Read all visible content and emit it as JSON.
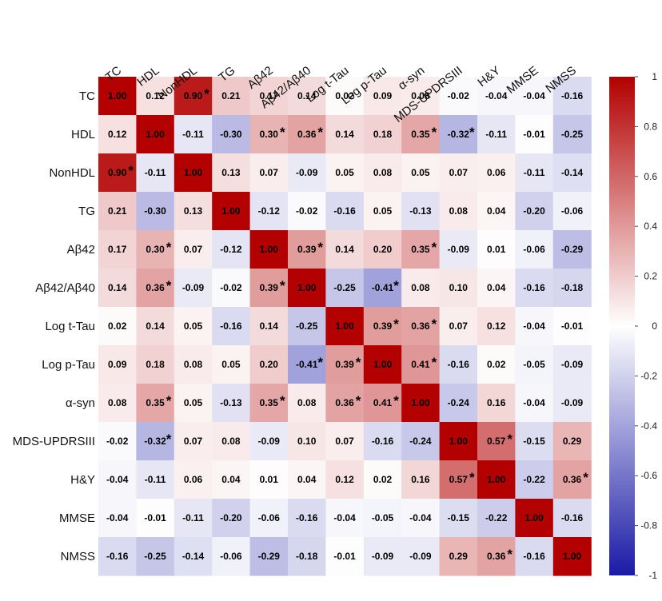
{
  "chart_data": {
    "type": "heatmap",
    "title": "",
    "variables": [
      "TC",
      "HDL",
      "NonHDL",
      "TG",
      "Aβ42",
      "Aβ42/Aβ40",
      "Log t-Tau",
      "Log p-Tau",
      "α-syn",
      "MDS-UPDRSIII",
      "H&Y",
      "MMSE",
      "NMSS"
    ],
    "values": [
      [
        1.0,
        0.12,
        0.9,
        0.21,
        0.17,
        0.14,
        0.02,
        0.09,
        0.08,
        -0.02,
        -0.04,
        -0.04,
        -0.16
      ],
      [
        0.12,
        1.0,
        -0.11,
        -0.3,
        0.3,
        0.36,
        0.14,
        0.18,
        0.35,
        -0.32,
        -0.11,
        -0.01,
        -0.25
      ],
      [
        0.9,
        -0.11,
        1.0,
        0.13,
        0.07,
        -0.09,
        0.05,
        0.08,
        0.05,
        0.07,
        0.06,
        -0.11,
        -0.14
      ],
      [
        0.21,
        -0.3,
        0.13,
        1.0,
        -0.12,
        -0.02,
        -0.16,
        0.05,
        -0.13,
        0.08,
        0.04,
        -0.2,
        -0.06
      ],
      [
        0.17,
        0.3,
        0.07,
        -0.12,
        1.0,
        0.39,
        0.14,
        0.2,
        0.35,
        -0.09,
        0.01,
        -0.06,
        -0.29
      ],
      [
        0.14,
        0.36,
        -0.09,
        -0.02,
        0.39,
        1.0,
        -0.25,
        -0.41,
        0.08,
        0.1,
        0.04,
        -0.16,
        -0.18
      ],
      [
        0.02,
        0.14,
        0.05,
        -0.16,
        0.14,
        -0.25,
        1.0,
        0.39,
        0.36,
        0.07,
        0.12,
        -0.04,
        -0.01
      ],
      [
        0.09,
        0.18,
        0.08,
        0.05,
        0.2,
        -0.41,
        0.39,
        1.0,
        0.41,
        -0.16,
        0.02,
        -0.05,
        -0.09
      ],
      [
        0.08,
        0.35,
        0.05,
        -0.13,
        0.35,
        0.08,
        0.36,
        0.41,
        1.0,
        -0.24,
        0.16,
        -0.04,
        -0.09
      ],
      [
        -0.02,
        -0.32,
        0.07,
        0.08,
        -0.09,
        0.1,
        0.07,
        -0.16,
        -0.24,
        1.0,
        0.57,
        -0.15,
        0.29
      ],
      [
        -0.04,
        -0.11,
        0.06,
        0.04,
        0.01,
        0.04,
        0.12,
        0.02,
        0.16,
        0.57,
        1.0,
        -0.22,
        0.36
      ],
      [
        -0.04,
        -0.01,
        -0.11,
        -0.2,
        -0.06,
        -0.16,
        -0.04,
        -0.05,
        -0.04,
        -0.15,
        -0.22,
        1.0,
        -0.16
      ],
      [
        -0.16,
        -0.25,
        -0.14,
        -0.06,
        -0.29,
        -0.18,
        -0.01,
        -0.09,
        -0.09,
        0.29,
        0.36,
        -0.16,
        1.0
      ]
    ],
    "significant": [
      [
        0,
        2
      ],
      [
        1,
        4
      ],
      [
        1,
        5
      ],
      [
        1,
        8
      ],
      [
        1,
        9
      ],
      [
        2,
        0
      ],
      [
        4,
        1
      ],
      [
        4,
        5
      ],
      [
        4,
        8
      ],
      [
        5,
        1
      ],
      [
        5,
        4
      ],
      [
        5,
        7
      ],
      [
        6,
        7
      ],
      [
        6,
        8
      ],
      [
        7,
        5
      ],
      [
        7,
        6
      ],
      [
        7,
        8
      ],
      [
        8,
        1
      ],
      [
        8,
        4
      ],
      [
        8,
        6
      ],
      [
        8,
        7
      ],
      [
        9,
        1
      ],
      [
        9,
        10
      ],
      [
        10,
        9
      ],
      [
        10,
        12
      ],
      [
        12,
        10
      ]
    ],
    "significance_marker": "*",
    "colorbar": {
      "range": [
        -1,
        1
      ],
      "ticks": [
        1,
        0.8,
        0.6,
        0.4,
        0.2,
        0,
        -0.2,
        -0.4,
        -0.6,
        -0.8,
        -1
      ],
      "tick_labels": [
        "1",
        "0.8",
        "0.6",
        "0.4",
        "0.2",
        "0",
        "-0.2",
        "-0.4",
        "-0.6",
        "-0.8",
        "-1"
      ],
      "color_low": "#1a1aa6",
      "color_mid": "#ffffff",
      "color_high": "#b30000"
    },
    "label_position": "top-and-left"
  }
}
